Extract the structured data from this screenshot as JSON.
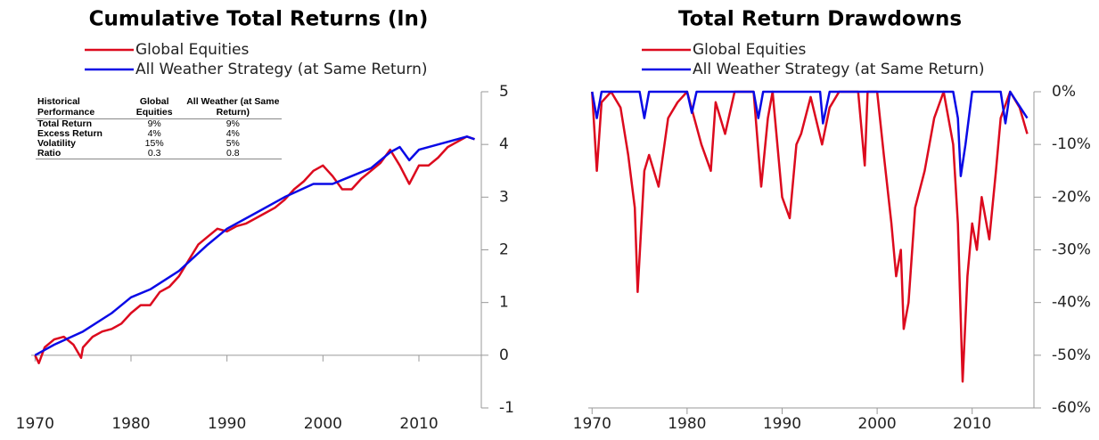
{
  "chart_data": [
    {
      "type": "line",
      "title": "Cumulative Total Returns (ln)",
      "xlim": [
        1969.6,
        2016.5
      ],
      "xticks": [
        1970,
        1980,
        1990,
        2000,
        2010
      ],
      "ylim": [
        -1,
        5
      ],
      "yticks": [
        -1,
        0,
        1,
        2,
        3,
        4,
        5
      ],
      "series": [
        {
          "name": "Global Equities",
          "color": "#dc0a1e",
          "x": [
            1970,
            1970.4,
            1971,
            1972,
            1973,
            1974,
            1974.8,
            1975,
            1976,
            1977,
            1978,
            1979,
            1980,
            1981,
            1982,
            1983,
            1984,
            1985,
            1986,
            1987,
            1988,
            1989,
            1990,
            1991,
            1992,
            1993,
            1994,
            1995,
            1996,
            1997,
            1998,
            1999,
            2000,
            2001,
            2002,
            2003,
            2004,
            2005,
            2006,
            2007,
            2008,
            2009,
            2010,
            2011,
            2012,
            2013,
            2014,
            2015,
            2015.8
          ],
          "values": [
            0,
            -0.15,
            0.15,
            0.3,
            0.35,
            0.2,
            -0.05,
            0.15,
            0.35,
            0.45,
            0.5,
            0.6,
            0.8,
            0.95,
            0.95,
            1.2,
            1.3,
            1.5,
            1.8,
            2.1,
            2.25,
            2.4,
            2.35,
            2.45,
            2.5,
            2.6,
            2.7,
            2.8,
            2.95,
            3.15,
            3.3,
            3.5,
            3.6,
            3.4,
            3.15,
            3.15,
            3.35,
            3.5,
            3.65,
            3.9,
            3.6,
            3.25,
            3.6,
            3.6,
            3.75,
            3.95,
            4.05,
            4.15,
            4.1
          ]
        },
        {
          "name": "All Weather Strategy (at Same Return)",
          "color": "#0a0ae6",
          "x": [
            1970,
            1972,
            1975,
            1978,
            1980,
            1982,
            1985,
            1988,
            1990,
            1993,
            1996,
            1999,
            2001,
            2003,
            2005,
            2007,
            2008,
            2009,
            2010,
            2012,
            2014,
            2015,
            2015.8
          ],
          "values": [
            0,
            0.2,
            0.45,
            0.8,
            1.1,
            1.25,
            1.6,
            2.1,
            2.4,
            2.7,
            3.0,
            3.25,
            3.25,
            3.4,
            3.55,
            3.85,
            3.95,
            3.7,
            3.9,
            4.0,
            4.1,
            4.15,
            4.1
          ]
        }
      ]
    },
    {
      "type": "line",
      "title": "Total Return Drawdowns",
      "xlim": [
        1969.6,
        2016.5
      ],
      "xticks": [
        1970,
        1980,
        1990,
        2000,
        2010
      ],
      "ylim": [
        -60,
        0
      ],
      "yticks": [
        {
          "value": -60,
          "label": "-60%"
        },
        {
          "value": -50,
          "label": "-50%"
        },
        {
          "value": -40,
          "label": "-40%"
        },
        {
          "value": -30,
          "label": "-30%"
        },
        {
          "value": -20,
          "label": "-20%"
        },
        {
          "value": -10,
          "label": "-10%"
        },
        {
          "value": 0,
          "label": "0%"
        }
      ],
      "series": [
        {
          "name": "Global Equities",
          "color": "#dc0a1e",
          "x": [
            1970,
            1970.5,
            1971,
            1972,
            1973,
            1973.8,
            1974.5,
            1974.8,
            1975.5,
            1976,
            1977,
            1978,
            1979,
            1980,
            1981.5,
            1982.5,
            1983,
            1984,
            1985,
            1987,
            1987.8,
            1988.5,
            1989,
            1990,
            1990.8,
            1991.5,
            1992,
            1993,
            1994.2,
            1995,
            1996,
            1998,
            1998.7,
            1999,
            2000,
            2000.7,
            2001.5,
            2002,
            2002.5,
            2002.8,
            2003.3,
            2004,
            2005,
            2006,
            2007,
            2008,
            2008.5,
            2009,
            2009.5,
            2010,
            2010.5,
            2011,
            2011.8,
            2012.5,
            2013,
            2014,
            2015,
            2015.8
          ],
          "values": [
            0,
            -15,
            -2,
            0,
            -3,
            -12,
            -22,
            -38,
            -15,
            -12,
            -18,
            -5,
            -2,
            0,
            -10,
            -15,
            -2,
            -8,
            0,
            0,
            -18,
            -5,
            0,
            -20,
            -24,
            -10,
            -8,
            -1,
            -10,
            -3,
            0,
            0,
            -14,
            0,
            0,
            -12,
            -25,
            -35,
            -30,
            -45,
            -40,
            -22,
            -15,
            -5,
            0,
            -10,
            -25,
            -55,
            -35,
            -25,
            -30,
            -20,
            -28,
            -15,
            -5,
            0,
            -3,
            -8
          ]
        },
        {
          "name": "All Weather Strategy (at Same Return)",
          "color": "#0a0ae6",
          "x": [
            1970,
            1970.5,
            1971,
            1975,
            1975.5,
            1976,
            1980,
            1980.5,
            1981,
            1987,
            1987.5,
            1988,
            1994,
            1994.3,
            1995,
            2008,
            2008.5,
            2008.8,
            2009.3,
            2010,
            2013,
            2013.5,
            2014,
            2015.8
          ],
          "values": [
            0,
            -5,
            0,
            0,
            -5,
            0,
            0,
            -4,
            0,
            0,
            -5,
            0,
            0,
            -6,
            0,
            0,
            -5,
            -16,
            -10,
            0,
            0,
            -6,
            0,
            -5
          ]
        }
      ]
    }
  ],
  "table": {
    "columns": [
      "Historical Performance",
      "Global Equities",
      "All Weather (at Same Return)"
    ],
    "rows": [
      [
        "Total Return",
        "9%",
        "9%"
      ],
      [
        "Excess Return",
        "4%",
        "4%"
      ],
      [
        "Volatility",
        "15%",
        "5%"
      ],
      [
        "Ratio",
        "0.3",
        "0.8"
      ]
    ]
  }
}
